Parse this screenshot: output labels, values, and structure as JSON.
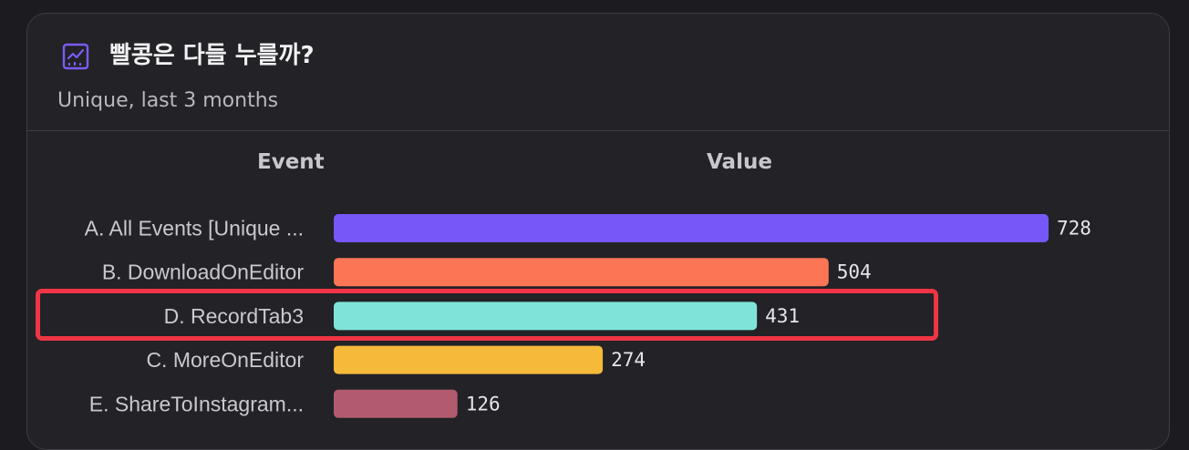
{
  "report": {
    "title": "빨콩은 다들 누를까?",
    "subtitle": "Unique, last 3 months",
    "icon": "line-chart-icon",
    "accent_color": "#7c5cf5"
  },
  "columns": {
    "event": "Event",
    "value": "Value"
  },
  "highlighted_row": "D. RecordTab3",
  "highlight_color": "#ef3545",
  "chart_data": {
    "type": "bar",
    "orientation": "horizontal",
    "title": "빨콩은 다들 누를까?",
    "subtitle": "Unique, last 3 months",
    "xlabel": "Value",
    "ylabel": "Event",
    "xlim": [
      0,
      728
    ],
    "grid": false,
    "legend": "none",
    "categories": [
      "A. All Events [Unique ...",
      "B. DownloadOnEditor",
      "D. RecordTab3",
      "C. MoreOnEditor",
      "E. ShareToInstagram..."
    ],
    "values": [
      728,
      504,
      431,
      274,
      126
    ],
    "colors": [
      "#7857f8",
      "#fc7656",
      "#80e3d9",
      "#f5ba3a",
      "#b25b6e"
    ]
  }
}
